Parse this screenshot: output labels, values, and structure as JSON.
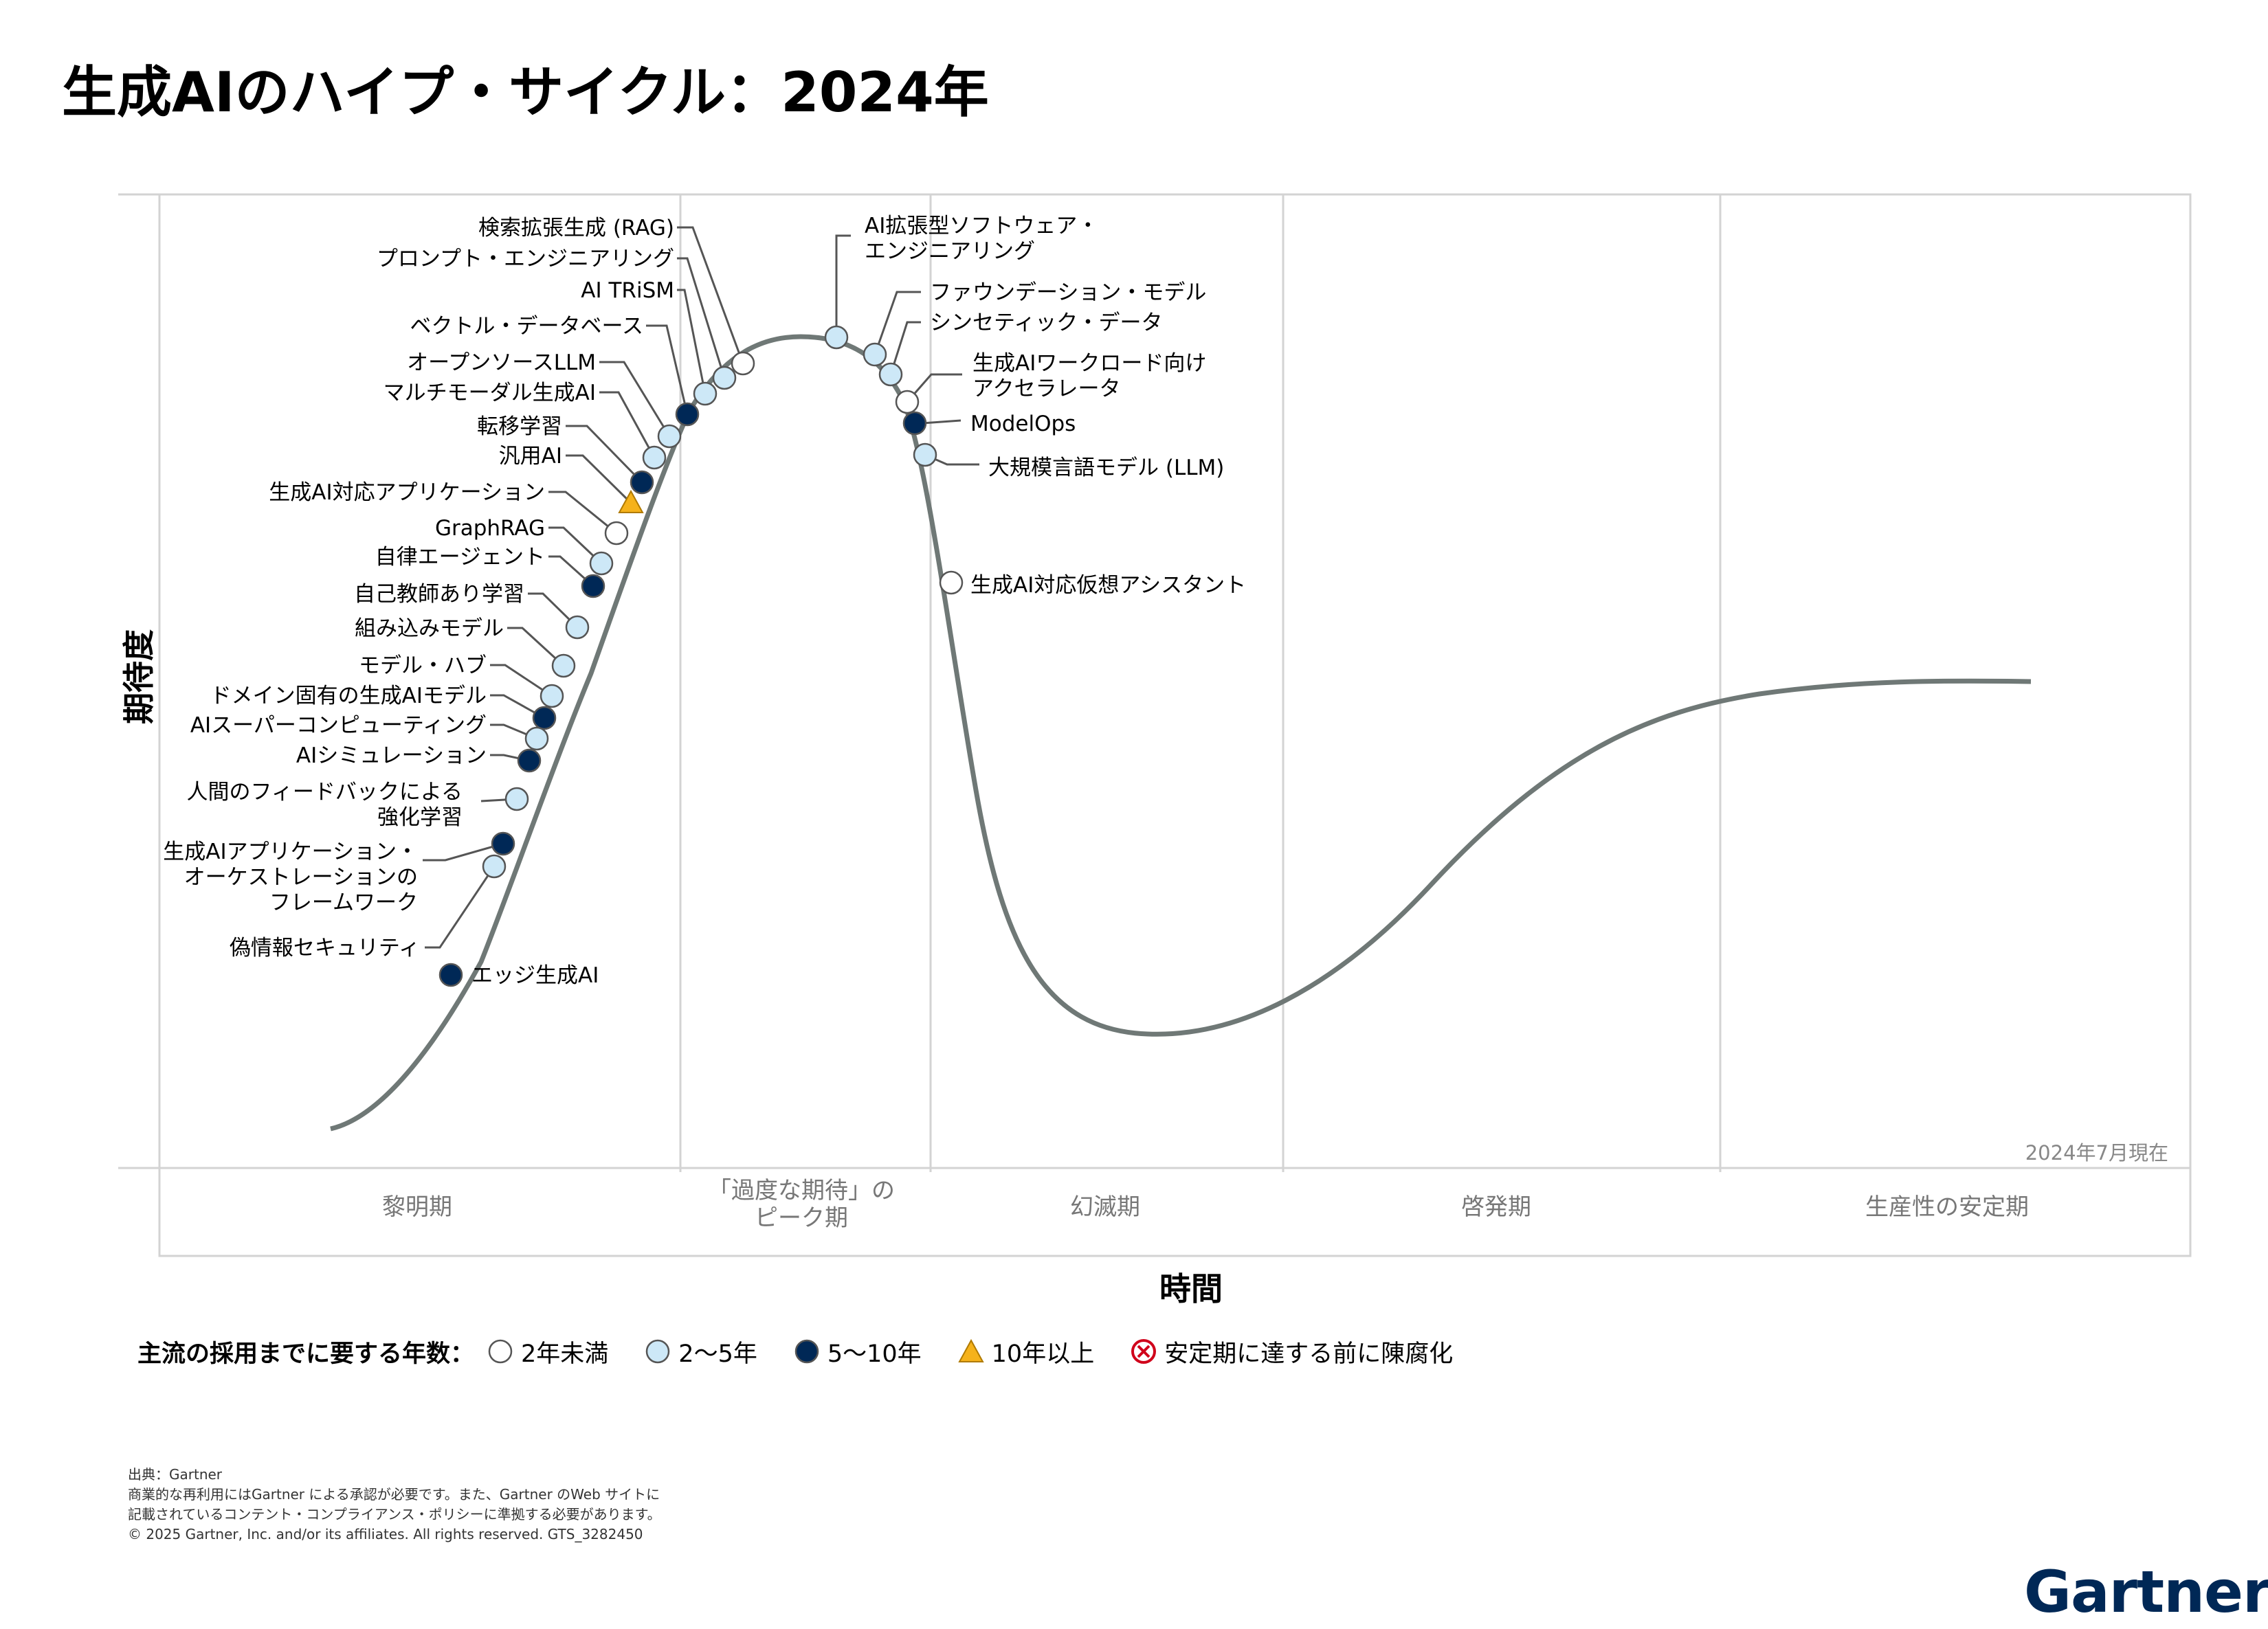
{
  "title": "生成AIのハイプ・サイクル：2024年",
  "axes": {
    "y_label": "期待度",
    "x_label": "時間",
    "as_of": "2024年7月現在"
  },
  "phases": [
    {
      "label": "黎明期"
    },
    {
      "label": "「過度な期待」の\nピーク期"
    },
    {
      "label": "幻滅期"
    },
    {
      "label": "啓発期"
    },
    {
      "label": "生産性の安定期"
    }
  ],
  "legend": {
    "title": "主流の採用までに要する年数：",
    "items": [
      {
        "key": "lt2",
        "label": "2年未満"
      },
      {
        "key": "2to5",
        "label": "2〜5年"
      },
      {
        "key": "5to10",
        "label": "5〜10年"
      },
      {
        "key": "gt10",
        "label": "10年以上"
      },
      {
        "key": "obsolete",
        "label": "安定期に達する前に陳腐化"
      }
    ]
  },
  "colors": {
    "lt2": "#ffffff",
    "2to5": "#cde8f7",
    "5to10": "#002856",
    "gt10": "#f5b21b",
    "obsolete": "#d0021b",
    "curve": "#6f7876",
    "grid": "#d3d3d3"
  },
  "technologies": [
    {
      "label": "検索拡張生成 (RAG)",
      "category": "lt2"
    },
    {
      "label": "プロンプト・エンジニアリング",
      "category": "2to5"
    },
    {
      "label": "AI TRiSM",
      "category": "2to5"
    },
    {
      "label": "ベクトル・データベース",
      "category": "5to10"
    },
    {
      "label": "オープンソースLLM",
      "category": "2to5"
    },
    {
      "label": "マルチモーダル生成AI",
      "category": "2to5"
    },
    {
      "label": "転移学習",
      "category": "5to10"
    },
    {
      "label": "汎用AI",
      "category": "gt10"
    },
    {
      "label": "生成AI対応アプリケーション",
      "category": "lt2"
    },
    {
      "label": "GraphRAG",
      "category": "2to5"
    },
    {
      "label": "自律エージェント",
      "category": "5to10"
    },
    {
      "label": "自己教師あり学習",
      "category": "2to5"
    },
    {
      "label": "組み込みモデル",
      "category": "2to5"
    },
    {
      "label": "モデル・ハブ",
      "category": "2to5"
    },
    {
      "label": "ドメイン固有の生成AIモデル",
      "category": "5to10"
    },
    {
      "label": "AIスーパーコンピューティング",
      "category": "2to5"
    },
    {
      "label": "AIシミュレーション",
      "category": "5to10"
    },
    {
      "label": "人間のフィードバックによる\n強化学習",
      "category": "2to5"
    },
    {
      "label": "生成AIアプリケーション・\nオーケストレーションの\nフレームワーク",
      "category": "5to10"
    },
    {
      "label": "偽情報セキュリティ",
      "category": "2to5"
    },
    {
      "label": "エッジ生成AI",
      "category": "5to10"
    },
    {
      "label": "AI拡張型ソフトウェア・\nエンジニアリング",
      "category": "2to5"
    },
    {
      "label": "ファウンデーション・モデル",
      "category": "2to5"
    },
    {
      "label": "シンセティック・データ",
      "category": "2to5"
    },
    {
      "label": "生成AIワークロード向け\nアクセラレータ",
      "category": "lt2"
    },
    {
      "label": "ModelOps",
      "category": "5to10"
    },
    {
      "label": "大規模言語モデル (LLM)",
      "category": "2to5"
    },
    {
      "label": "生成AI対応仮想アシスタント",
      "category": "lt2"
    }
  ],
  "footnote": {
    "source": "出典：Gartner",
    "line1": "商業的な再利用にはGartner による承認が必要です。また、Gartner のWeb サイトに",
    "line2": "記載されているコンテント・コンプライアンス・ポリシーに準拠する必要があります。",
    "copyright": "© 2025 Gartner, Inc. and/or its affiliates. All rights reserved. GTS_3282450"
  },
  "brand": "Gartner"
}
